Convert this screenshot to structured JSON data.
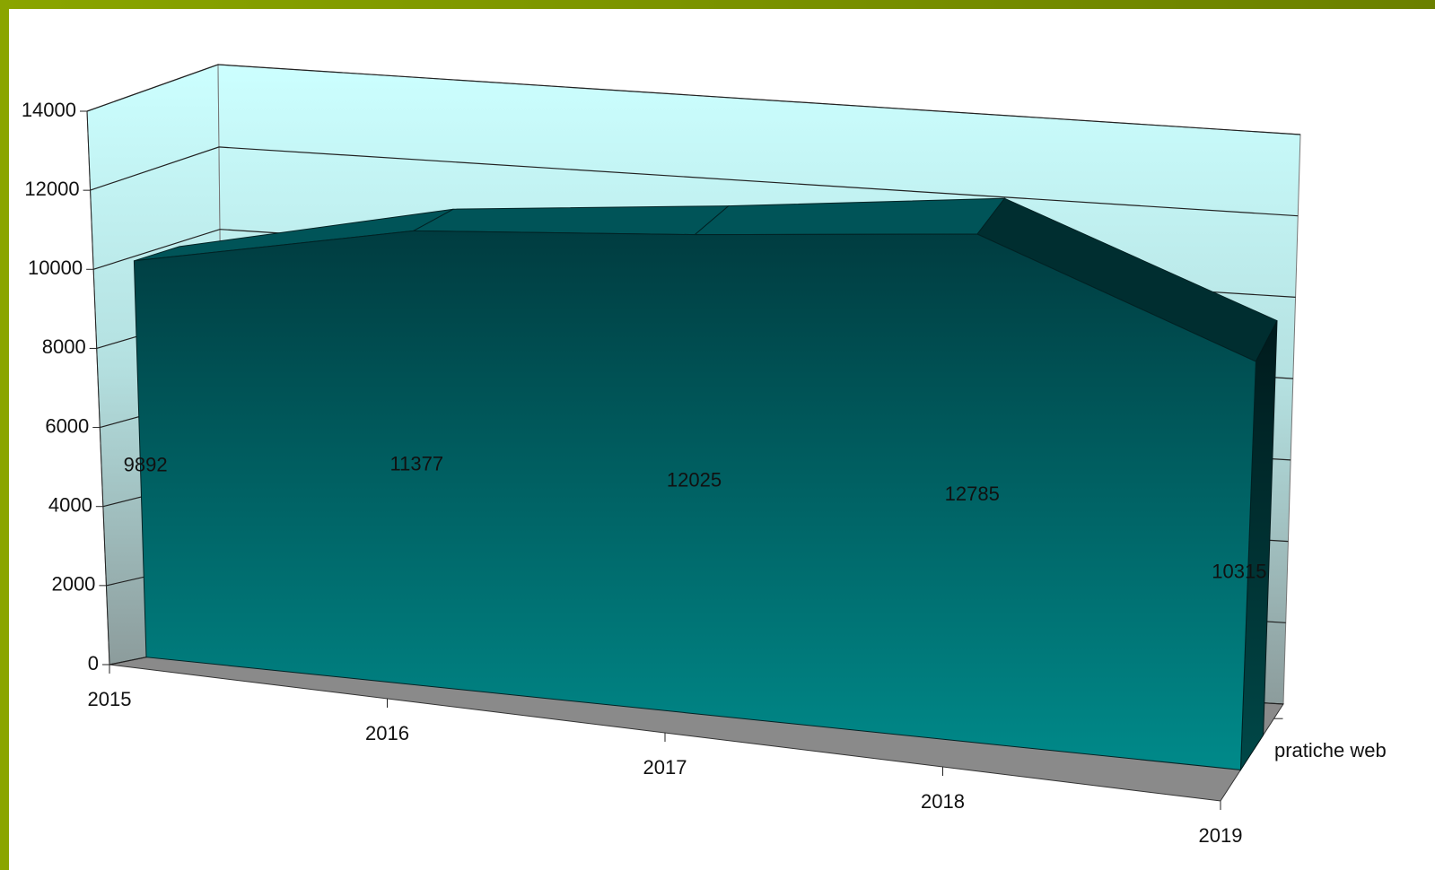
{
  "chart_data": {
    "type": "area3d",
    "categories": [
      "2015",
      "2016",
      "2017",
      "2018",
      "2019"
    ],
    "series": [
      {
        "name": "pratiche web",
        "color": "#008080",
        "values": [
          9892,
          11377,
          12025,
          12785,
          10315
        ]
      }
    ],
    "ylim": [
      0,
      14000
    ],
    "yticks": [
      0,
      2000,
      4000,
      6000,
      8000,
      10000,
      12000,
      14000
    ],
    "grid": true
  }
}
